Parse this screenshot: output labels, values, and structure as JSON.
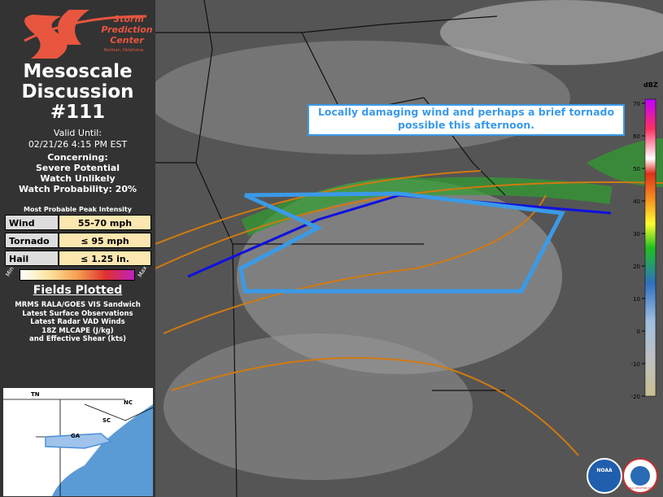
{
  "header": {
    "logo_line1": "Storm",
    "logo_line2": "Prediction",
    "logo_line3": "Center",
    "logo_sub": "Norman, Oklahoma",
    "title_line1": "Mesoscale",
    "title_line2": "Discussion",
    "number": "#111",
    "valid_label": "Valid Until:",
    "valid_time": "02/21/26 4:15 PM EST"
  },
  "concerning": {
    "label": "Concerning:",
    "lines": [
      "Severe Potential",
      "Watch Unlikely",
      "Watch Probability: 20%"
    ]
  },
  "intensity": {
    "title": "Most Probable Peak Intensity",
    "rows": [
      {
        "label": "Wind",
        "value": "55-70 mph"
      },
      {
        "label": "Tornado",
        "value": "≤ 95 mph"
      },
      {
        "label": "Hail",
        "value": "≤ 1.25 in."
      }
    ],
    "min": "Min",
    "max": "Max"
  },
  "fields": {
    "title": "Fields Plotted",
    "lines": [
      "MRMS RALA/GOES VIS Sandwich",
      "Latest Surface Observations",
      "Latest Radar VAD Winds",
      "18Z MLCAPE (J/kg)",
      "and Effective Shear (kts)"
    ]
  },
  "inset": {
    "labels": [
      {
        "text": "TN"
      },
      {
        "text": "NC"
      },
      {
        "text": "SC"
      },
      {
        "text": "GA"
      }
    ]
  },
  "map": {
    "annotation": [
      "Locally damaging wind and perhaps a brief tornado",
      "possible this afternoon."
    ],
    "colorbar": {
      "unit": "dBZ",
      "ticks": [
        70,
        60,
        50,
        40,
        30,
        20,
        10,
        0,
        -10,
        -20
      ]
    },
    "logos": [
      "NOAA",
      "NATIONAL WEATHER SERVICE"
    ]
  }
}
